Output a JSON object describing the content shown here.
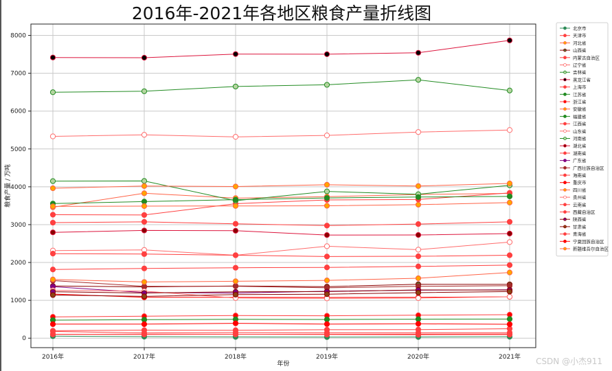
{
  "chart_data": {
    "type": "line",
    "title": "2016年-2021年各地区粮食产量折线图",
    "xlabel": "年份",
    "ylabel": "粮食产量 / 万吨",
    "categories": [
      "2016年",
      "2017年",
      "2018年",
      "2019年",
      "2020年",
      "2021年"
    ],
    "ylim": [
      -250,
      8300
    ],
    "yticks": [
      0,
      1000,
      2000,
      3000,
      4000,
      5000,
      6000,
      7000,
      8000
    ],
    "grid": true,
    "legend_position": "right, outside plot",
    "series": [
      {
        "name": "北京市",
        "color": "#2e8b57",
        "marker": "#2e8b57",
        "values": [
          53,
          41,
          34,
          29,
          31,
          38
        ]
      },
      {
        "name": "天津市",
        "color": "#ff4040",
        "marker": "#ff4040",
        "values": [
          196,
          212,
          210,
          223,
          228,
          250
        ]
      },
      {
        "name": "河北省",
        "color": "#ff6347",
        "marker": "#ffa500",
        "values": [
          3460,
          3829,
          3700,
          3739,
          3796,
          3825
        ]
      },
      {
        "name": "山西省",
        "color": "#8b0000",
        "marker": "#556b2f",
        "values": [
          1380,
          1355,
          1380,
          1362,
          1424,
          1421
        ]
      },
      {
        "name": "内蒙古自治区",
        "color": "#ff4040",
        "marker": "#ff4040",
        "values": [
          3263,
          3255,
          3553,
          3653,
          3664,
          3840
        ]
      },
      {
        "name": "辽宁省",
        "color": "#ff6b6b",
        "marker": "#ffffff",
        "values": [
          2315,
          2331,
          2192,
          2430,
          2339,
          2539
        ]
      },
      {
        "name": "吉林省",
        "color": "#228b22",
        "marker": "#b5d5a0",
        "values": [
          4150,
          4154,
          3633,
          3878,
          3803,
          4039
        ]
      },
      {
        "name": "黑龙江省",
        "color": "#dc143c",
        "marker": "#000000",
        "values": [
          7416,
          7410,
          7507,
          7503,
          7541,
          7868
        ]
      },
      {
        "name": "上海市",
        "color": "#ff4040",
        "marker": "#ff4040",
        "values": [
          99,
          100,
          104,
          96,
          91,
          94
        ]
      },
      {
        "name": "江苏省",
        "color": "#228b22",
        "marker": "#228b22",
        "values": [
          3556,
          3610,
          3660,
          3706,
          3729,
          3746
        ]
      },
      {
        "name": "浙江省",
        "color": "#ff4040",
        "marker": "#ff0000",
        "values": [
          564,
          580,
          599,
          592,
          606,
          621
        ]
      },
      {
        "name": "安徽省",
        "color": "#ff6347",
        "marker": "#ffa500",
        "values": [
          3961,
          4019,
          4007,
          4054,
          4019,
          4088
        ]
      },
      {
        "name": "福建省",
        "color": "#228b22",
        "marker": "#228b22",
        "values": [
          477,
          488,
          498,
          494,
          502,
          506
        ]
      },
      {
        "name": "江西省",
        "color": "#ff4040",
        "marker": "#ff4040",
        "values": [
          2234,
          2222,
          2191,
          2157,
          2164,
          2192
        ]
      },
      {
        "name": "山东省",
        "color": "#ff6b6b",
        "marker": "#ffffff",
        "values": [
          5332,
          5374,
          5320,
          5357,
          5447,
          5500
        ]
      },
      {
        "name": "河南省",
        "color": "#228b22",
        "marker": "#b5d5a0",
        "values": [
          6498,
          6524,
          6649,
          6695,
          6826,
          6544
        ]
      },
      {
        "name": "湖北省",
        "color": "#dc143c",
        "marker": "#8b0000",
        "values": [
          2796,
          2846,
          2839,
          2725,
          2727,
          2764
        ]
      },
      {
        "name": "湖南省",
        "color": "#ff4040",
        "marker": "#ff4040",
        "values": [
          3053,
          3074,
          3023,
          2975,
          3015,
          3074
        ]
      },
      {
        "name": "广东省",
        "color": "#800080",
        "marker": "#800080",
        "values": [
          1360,
          1208,
          1193,
          1240,
          1268,
          1280
        ]
      },
      {
        "name": "广西壮族自治区",
        "color": "#a52a2a",
        "marker": "#a52a2a",
        "values": [
          1521,
          1370,
          1373,
          1332,
          1370,
          1386
        ]
      },
      {
        "name": "海南省",
        "color": "#ff4040",
        "marker": "#ff4040",
        "values": [
          178,
          138,
          147,
          145,
          145,
          146
        ]
      },
      {
        "name": "重庆市",
        "color": "#ff0000",
        "marker": "#ff0000",
        "values": [
          1166,
          1080,
          1079,
          1075,
          1081,
          1093
        ]
      },
      {
        "name": "四川省",
        "color": "#ff6347",
        "marker": "#ffa500",
        "values": [
          3483,
          3489,
          3494,
          3498,
          3527,
          3582
        ]
      },
      {
        "name": "贵州省",
        "color": "#ff6b6b",
        "marker": "#ffffff",
        "values": [
          1264,
          1242,
          1060,
          1051,
          1058,
          1095
        ]
      },
      {
        "name": "云南省",
        "color": "#ff4040",
        "marker": "#ff4040",
        "values": [
          1815,
          1843,
          1861,
          1870,
          1896,
          1931
        ]
      },
      {
        "name": "西藏自治区",
        "color": "#ff4040",
        "marker": "#ff4040",
        "values": [
          104,
          106,
          104,
          103,
          103,
          107
        ]
      },
      {
        "name": "陕西省",
        "color": "#8b0000",
        "marker": "#800080",
        "values": [
          1228,
          1194,
          1226,
          1231,
          1275,
          1270
        ]
      },
      {
        "name": "甘肃省",
        "color": "#8b0000",
        "marker": "#8b4513",
        "values": [
          1140,
          1105,
          1151,
          1163,
          1202,
          1231
        ]
      },
      {
        "name": "青海省",
        "color": "#ff4040",
        "marker": "#ff4040",
        "values": [
          104,
          103,
          103,
          106,
          107,
          109
        ]
      },
      {
        "name": "宁夏回族自治区",
        "color": "#ff0000",
        "marker": "#ff0000",
        "values": [
          371,
          370,
          393,
          373,
          380,
          368
        ]
      },
      {
        "name": "新疆维吾尔自治区",
        "color": "#ff6347",
        "marker": "#ffa500",
        "values": [
          1552,
          1485,
          1504,
          1527,
          1583,
          1736
        ]
      }
    ]
  },
  "watermark": "CSDN @小杰911"
}
